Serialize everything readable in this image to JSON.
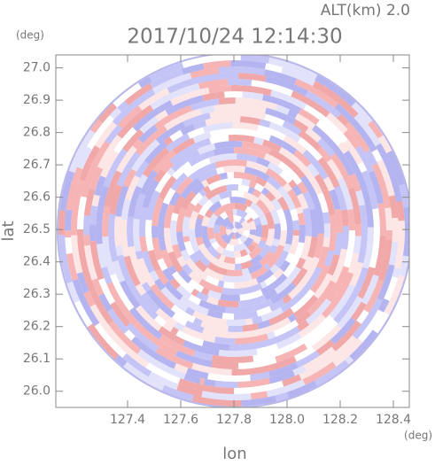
{
  "chart_data": {
    "type": "radar-ppi",
    "title": "2017/10/24 12:14:30",
    "subtitle": "ALT(km) 2.0",
    "x_label": "lon",
    "y_label": "lat",
    "x_unit": "(deg)",
    "y_unit": "(deg)",
    "xlim": [
      127.13,
      128.46
    ],
    "ylim": [
      25.95,
      27.04
    ],
    "xticks": [
      127.4,
      127.6,
      127.8,
      {
        "value": 128.0,
        "label": "128.0"
      },
      128.2,
      128.4
    ],
    "yticks": [
      {
        "value": 26.0,
        "label": "26.0"
      },
      26.1,
      26.2,
      26.3,
      26.4,
      26.5,
      26.6,
      26.7,
      26.8,
      26.9,
      {
        "value": 27.0,
        "label": "27.0"
      }
    ]
  }
}
